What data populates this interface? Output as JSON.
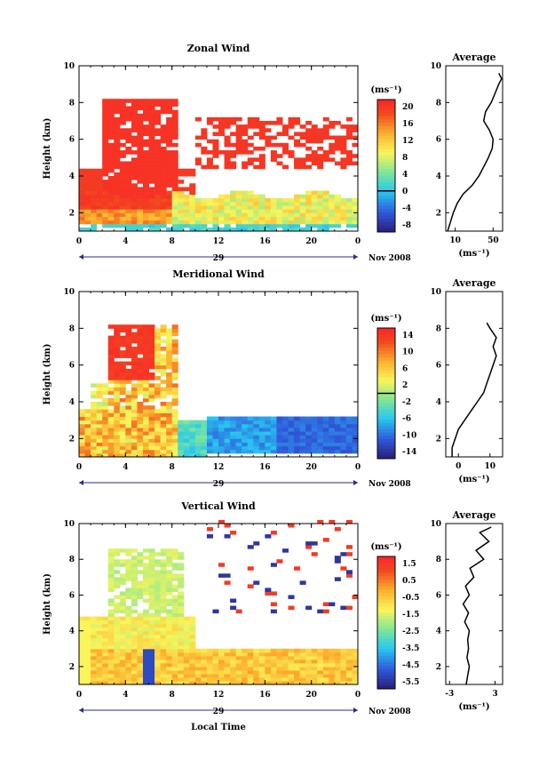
{
  "chart_data": [
    {
      "type": "heatmap",
      "title": "Zonal Wind",
      "ylabel": "Height (km)",
      "xlim": [
        0,
        24
      ],
      "ylim": [
        1,
        10
      ],
      "xticks": [
        "0",
        "4",
        "8",
        "12",
        "16",
        "20",
        "0"
      ],
      "yticks": [
        "2",
        "4",
        "6",
        "8",
        "10"
      ],
      "date_label": "29",
      "month_label": "Nov 2008",
      "colorbar": {
        "unit": "(ms⁻¹)",
        "ticks": [
          "20",
          "16",
          "12",
          "8",
          "4",
          "0",
          "-4",
          "-8"
        ],
        "range": [
          -10,
          22
        ]
      },
      "average": {
        "title": "Average",
        "xlabel": "(ms⁻¹)",
        "xticks": [
          "10",
          "50"
        ],
        "xlim": [
          0,
          60
        ],
        "heights": [
          1.0,
          1.5,
          2.0,
          2.5,
          3.0,
          3.5,
          4.0,
          4.5,
          5.0,
          5.5,
          6.0,
          6.5,
          7.0,
          7.5,
          8.0,
          8.5,
          9.0,
          9.3,
          9.6
        ],
        "values": [
          2,
          5,
          8,
          12,
          18,
          28,
          35,
          40,
          45,
          49,
          50,
          46,
          40,
          42,
          48,
          52,
          56,
          59,
          56
        ]
      }
    },
    {
      "type": "heatmap",
      "title": "Meridional Wind",
      "ylabel": "Height (km)",
      "xlim": [
        0,
        24
      ],
      "ylim": [
        1,
        10
      ],
      "xticks": [
        "0",
        "4",
        "8",
        "12",
        "16",
        "20",
        "0"
      ],
      "yticks": [
        "2",
        "4",
        "6",
        "8",
        "10"
      ],
      "date_label": "29",
      "month_label": "Nov 2008",
      "colorbar": {
        "unit": "(ms⁻¹)",
        "ticks": [
          "14",
          "10",
          "6",
          "2",
          "-2",
          "-6",
          "-10",
          "-14"
        ],
        "range": [
          -16,
          16
        ]
      },
      "average": {
        "title": "Average",
        "xlabel": "(ms⁻¹)",
        "xticks": [
          "0",
          "10"
        ],
        "xlim": [
          -4,
          14
        ],
        "heights": [
          1.0,
          1.5,
          2.0,
          2.5,
          3.0,
          3.5,
          4.0,
          4.5,
          5.0,
          5.5,
          6.0,
          6.5,
          7.0,
          7.5,
          8.0,
          8.3
        ],
        "values": [
          -2,
          -2,
          -1,
          0,
          2,
          4,
          6,
          8,
          9,
          10,
          11,
          12,
          11,
          12,
          10,
          9
        ]
      }
    },
    {
      "type": "heatmap",
      "title": "Vertical Wind",
      "ylabel": "Height (km)",
      "xlabel": "Local Time",
      "xlim": [
        0,
        24
      ],
      "ylim": [
        1,
        10
      ],
      "xticks": [
        "0",
        "4",
        "8",
        "12",
        "16",
        "20",
        "0"
      ],
      "yticks": [
        "2",
        "4",
        "6",
        "8",
        "10"
      ],
      "date_label": "29",
      "month_label": "Nov 2008",
      "colorbar": {
        "unit": "(ms⁻¹)",
        "ticks": [
          "1.5",
          "0.5",
          "-0.5",
          "-1.5",
          "-2.5",
          "-3.5",
          "-4.5",
          "-5.5"
        ],
        "range": [
          -6.5,
          2.5
        ]
      },
      "average": {
        "title": "Average",
        "xlabel": "(ms⁻¹)",
        "xticks": [
          "-3",
          "3"
        ],
        "xlim": [
          -3.5,
          4
        ],
        "heights": [
          1.0,
          1.5,
          2.0,
          2.5,
          3.0,
          3.5,
          4.0,
          4.5,
          5.0,
          5.5,
          6.0,
          6.5,
          7.0,
          7.5,
          8.0,
          8.5,
          9.0,
          9.5,
          9.8
        ],
        "values": [
          -0.8,
          -0.6,
          -0.4,
          -0.7,
          -0.5,
          -0.6,
          -0.4,
          -1.0,
          -0.5,
          -1.2,
          -0.4,
          -0.9,
          0.2,
          -0.3,
          1.5,
          0.5,
          2.2,
          1.0,
          2.5
        ]
      }
    }
  ]
}
